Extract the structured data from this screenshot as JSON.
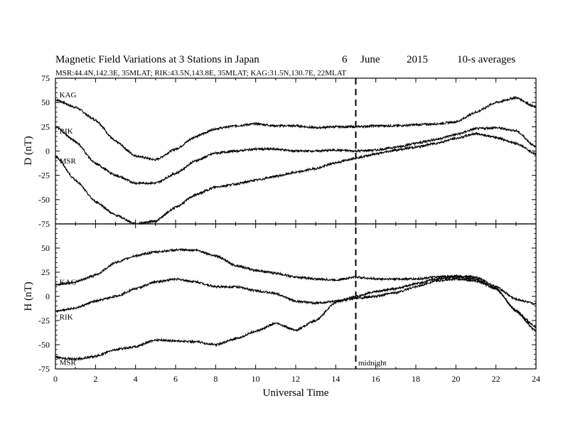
{
  "title": {
    "main": "Magnetic Field Variations at 3 Stations in Japan",
    "day": "6",
    "month": "June",
    "year": "2015",
    "averaging": "10-s averages"
  },
  "subtitle": "MSR:44.4N,142.3E, 35MLAT;  RIK:43.5N,143.8E, 35MLAT;  KAG:31.5N,130.7E, 22MLAT",
  "chart_data": [
    {
      "type": "line",
      "panel": "top",
      "ylabel": "D (nT)",
      "ylim": [
        -75,
        75
      ],
      "yticks": [
        "75",
        "50",
        "25",
        "0",
        "-25",
        "-50",
        "-75"
      ],
      "xlim": [
        0,
        24
      ],
      "grid": false,
      "series": [
        {
          "name": "KAG",
          "x": [
            0,
            1,
            2,
            3,
            4,
            5,
            6,
            7,
            8,
            9,
            10,
            11,
            12,
            13,
            14,
            15,
            16,
            17,
            18,
            19,
            20,
            21,
            22,
            23,
            24
          ],
          "values": [
            53,
            45,
            32,
            10,
            -5,
            -9,
            2,
            15,
            23,
            26,
            28,
            26,
            26,
            24,
            25,
            25,
            26,
            26,
            27,
            28,
            30,
            40,
            50,
            55,
            45
          ]
        },
        {
          "name": "RIK",
          "x": [
            0,
            1,
            2,
            3,
            4,
            5,
            6,
            7,
            8,
            9,
            10,
            11,
            12,
            13,
            14,
            15,
            16,
            17,
            18,
            19,
            20,
            21,
            22,
            23,
            24
          ],
          "values": [
            25,
            10,
            -13,
            -25,
            -33,
            -33,
            -23,
            -10,
            -2,
            0,
            2,
            2,
            0,
            0,
            1,
            0,
            1,
            4,
            8,
            12,
            17,
            23,
            24,
            21,
            4
          ]
        },
        {
          "name": "MSR",
          "x": [
            0,
            1,
            2,
            3,
            4,
            5,
            6,
            7,
            8,
            9,
            10,
            11,
            12,
            13,
            14,
            15,
            16,
            17,
            18,
            19,
            20,
            21,
            22,
            23,
            24
          ],
          "values": [
            -5,
            -30,
            -52,
            -66,
            -75,
            -72,
            -58,
            -45,
            -37,
            -34,
            -30,
            -26,
            -22,
            -18,
            -12,
            -7,
            -3,
            1,
            4,
            8,
            13,
            18,
            14,
            8,
            -3
          ]
        }
      ]
    },
    {
      "type": "line",
      "panel": "bottom",
      "xlabel": "Universal Time",
      "ylabel": "H (nT)",
      "ylim": [
        -75,
        75
      ],
      "yticks": [
        "50",
        "25",
        "0",
        "-25",
        "-50",
        "-75"
      ],
      "xlim": [
        0,
        24
      ],
      "xticks": [
        "0",
        "2",
        "4",
        "6",
        "8",
        "10",
        "12",
        "14",
        "16",
        "18",
        "20",
        "22",
        "24"
      ],
      "grid": false,
      "series": [
        {
          "name": "KAG",
          "x": [
            0,
            1,
            2,
            3,
            4,
            5,
            6,
            7,
            8,
            9,
            10,
            11,
            12,
            13,
            14,
            15,
            16,
            17,
            18,
            19,
            20,
            21,
            22,
            23,
            24
          ],
          "values": [
            12,
            15,
            22,
            35,
            42,
            46,
            48,
            48,
            42,
            32,
            27,
            24,
            20,
            18,
            17,
            20,
            18,
            18,
            18,
            20,
            21,
            20,
            10,
            -3,
            -8
          ]
        },
        {
          "name": "RIK",
          "x": [
            0,
            1,
            2,
            3,
            4,
            5,
            6,
            7,
            8,
            9,
            10,
            11,
            12,
            13,
            14,
            15,
            16,
            17,
            18,
            19,
            20,
            21,
            22,
            23,
            24
          ],
          "values": [
            -15,
            -12,
            -5,
            0,
            8,
            15,
            18,
            15,
            10,
            10,
            6,
            3,
            -5,
            -7,
            -5,
            -2,
            0,
            4,
            10,
            16,
            18,
            16,
            8,
            -15,
            -36
          ]
        },
        {
          "name": "MSR",
          "x": [
            0,
            1,
            2,
            3,
            4,
            5,
            6,
            7,
            8,
            9,
            10,
            11,
            12,
            13,
            14,
            15,
            16,
            17,
            18,
            19,
            20,
            21,
            22,
            23,
            24
          ],
          "values": [
            -63,
            -65,
            -62,
            -55,
            -52,
            -45,
            -46,
            -47,
            -50,
            -44,
            -36,
            -28,
            -35,
            -25,
            -6,
            0,
            5,
            8,
            13,
            18,
            20,
            18,
            8,
            -15,
            -32
          ]
        }
      ]
    }
  ],
  "annotations": {
    "midnight_label": "midnight",
    "midnight_ut": 15,
    "series_labels": {
      "top": [
        {
          "text": "KAG",
          "x": 0.2,
          "y": 58
        },
        {
          "text": "RIK",
          "x": 0.2,
          "y": 21
        },
        {
          "text": "MSR",
          "x": 0.2,
          "y": -10
        }
      ],
      "bottom": [
        {
          "text": "KAG",
          "x": 0.2,
          "y": 15
        },
        {
          "text": "RIK",
          "x": 0.2,
          "y": -21
        },
        {
          "text": "MSR",
          "x": 0.2,
          "y": -68
        }
      ]
    }
  },
  "colors": {
    "line": "#000000",
    "background": "#ffffff"
  }
}
